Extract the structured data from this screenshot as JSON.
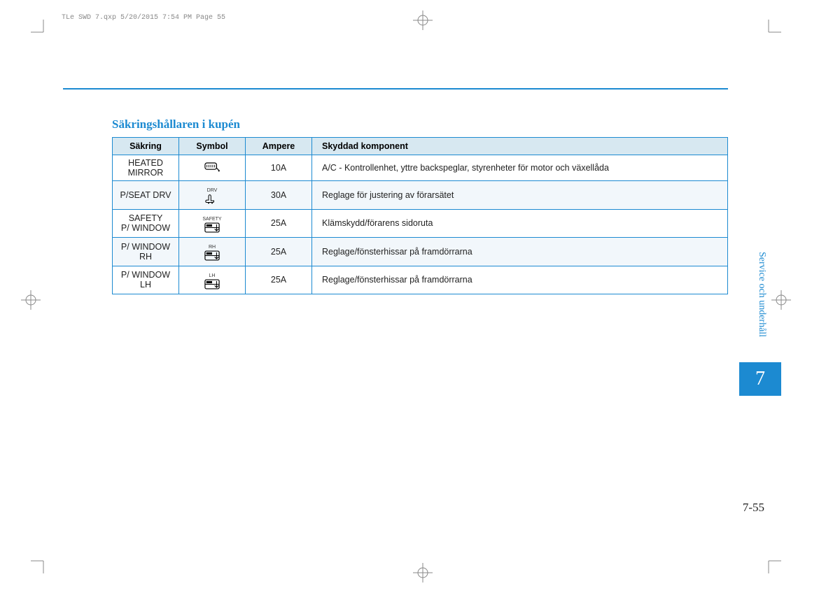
{
  "print_meta": "TLe SWD 7.qxp  5/20/2015  7:54 PM  Page 55",
  "section_title": "Säkringshållaren i kupén",
  "side_tab_text": "Service och underhåll",
  "chapter_number": "7",
  "page_number": "7-55",
  "colors": {
    "accent": "#1c8ad1",
    "header_bg": "#d7e8f1",
    "row_even": "#f2f7fb",
    "row_odd": "#ffffff"
  },
  "table": {
    "headers": {
      "fuse": "Säkring",
      "symbol": "Symbol",
      "ampere": "Ampere",
      "protected": "Skyddad komponent"
    },
    "rows": [
      {
        "fuse": "HEATED\nMIRROR",
        "symbol_tag": "",
        "symbol_icon": "mirror",
        "ampere": "10A",
        "protected": "A/C - Kontrollenhet, yttre backspeglar, styrenheter för motor och växellåda"
      },
      {
        "fuse": "P/SEAT DRV",
        "symbol_tag": "DRV",
        "symbol_icon": "seat",
        "ampere": "30A",
        "protected": "Reglage för justering av förarsätet"
      },
      {
        "fuse": "SAFETY\nP/ WINDOW",
        "symbol_tag": "SAFETY",
        "symbol_icon": "window",
        "ampere": "25A",
        "protected": "Klämskydd/förarens sidoruta"
      },
      {
        "fuse": "P/ WINDOW\nRH",
        "symbol_tag": "RH",
        "symbol_icon": "window",
        "ampere": "25A",
        "protected": "Reglage/fönsterhissar på framdörrarna"
      },
      {
        "fuse": "P/ WINDOW\nLH",
        "symbol_tag": "LH",
        "symbol_icon": "window",
        "ampere": "25A",
        "protected": "Reglage/fönsterhissar på framdörrarna"
      }
    ]
  }
}
